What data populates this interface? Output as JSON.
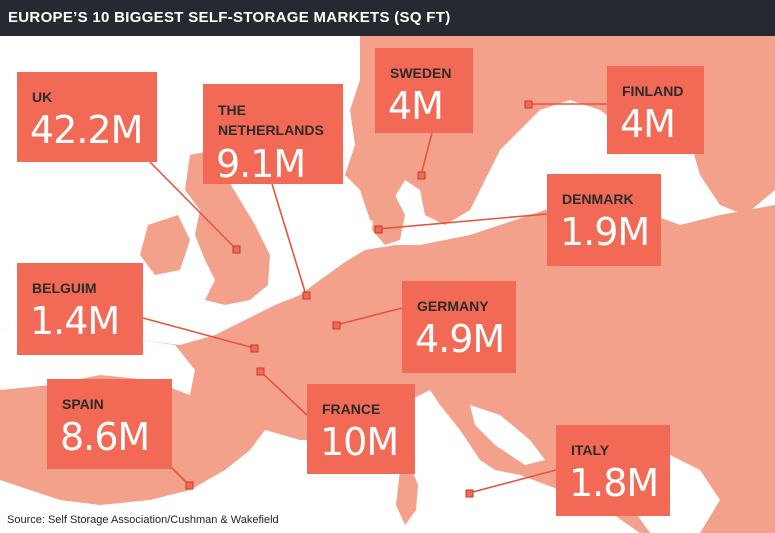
{
  "title": "EUROPE’S 10 BIGGEST SELF-STORAGE MARKETS (SQ FT)",
  "source": "Source: Self Storage Association/Cushman & Wakefield",
  "colors": {
    "sea": "#ffffff",
    "land": "#f4a18c",
    "box": "#f26a55",
    "leader": "#e5543f",
    "titlebar": "#262a30"
  },
  "markets": {
    "uk": {
      "name": "UK",
      "value": "42.2M"
    },
    "netherlands": {
      "name_line1": "THE",
      "name_line2": "NETHERLANDS",
      "value": "9.1M"
    },
    "sweden": {
      "name": "SWEDEN",
      "value": "4M"
    },
    "finland": {
      "name": "FINLAND",
      "value": "4M"
    },
    "denmark": {
      "name": "DENMARK",
      "value": "1.9M"
    },
    "belgium": {
      "name": "BELGUIM",
      "value": "1.4M"
    },
    "germany": {
      "name": "GERMANY",
      "value": "4.9M"
    },
    "spain": {
      "name": "SPAIN",
      "value": "8.6M"
    },
    "france": {
      "name": "FRANCE",
      "value": "10M"
    },
    "italy": {
      "name": "ITALY",
      "value": "1.8M"
    }
  }
}
